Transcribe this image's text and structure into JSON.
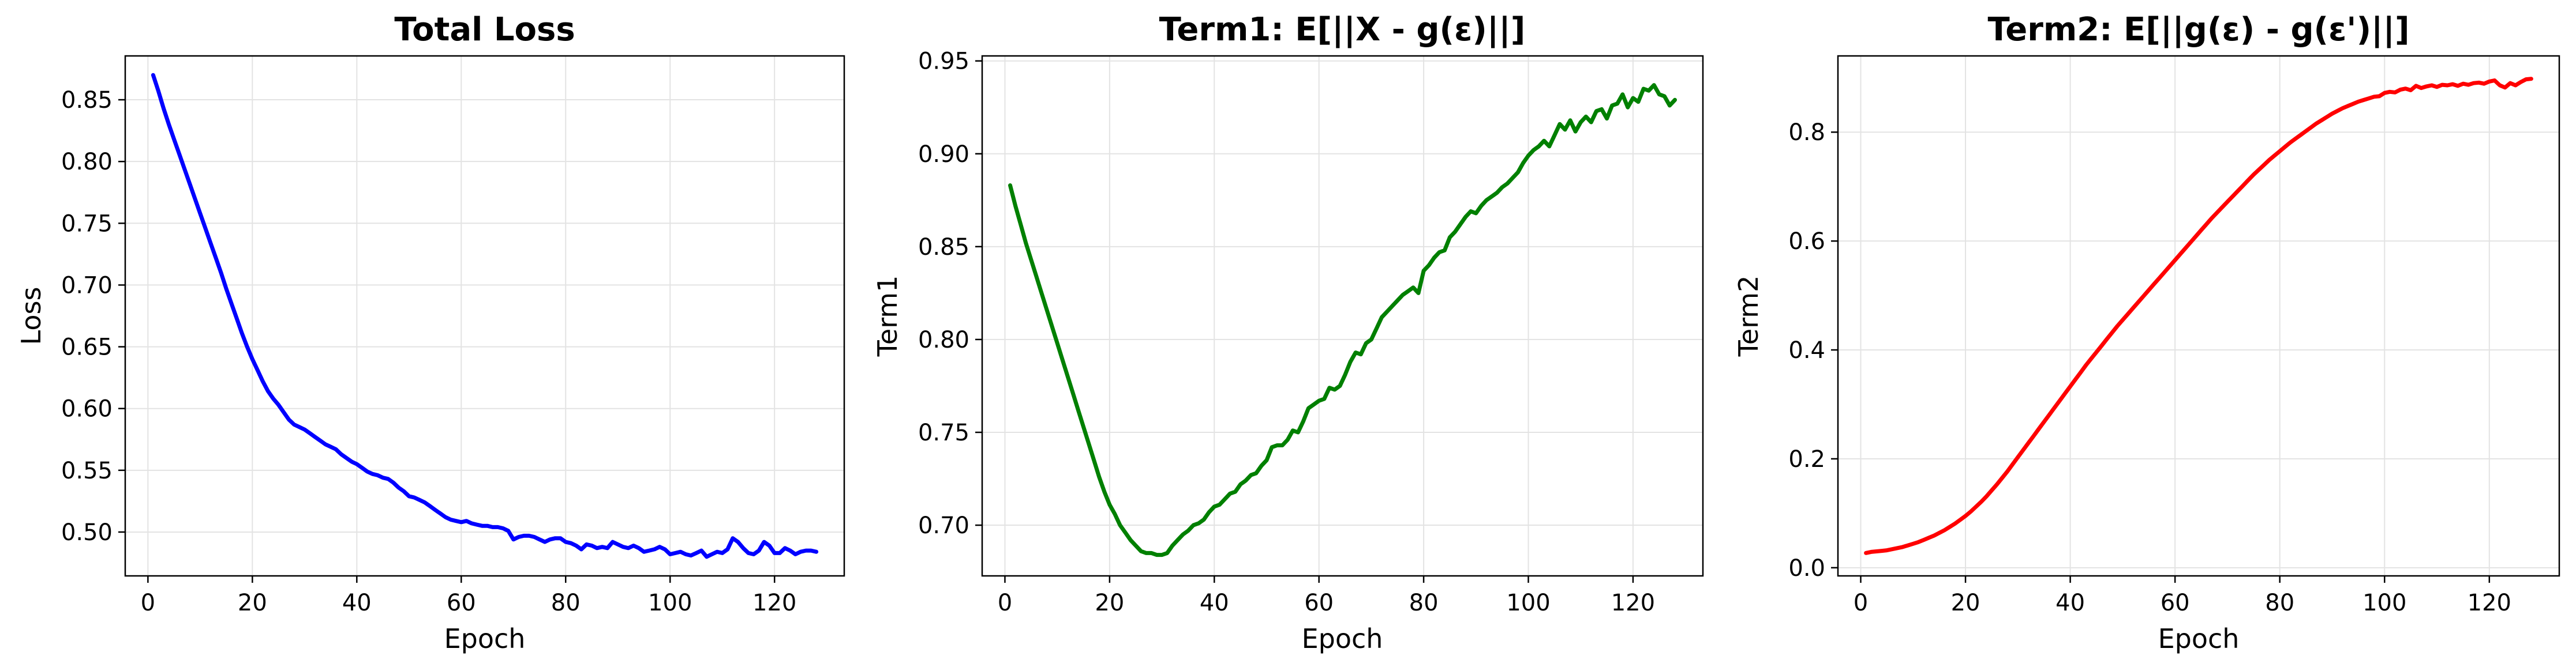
{
  "chart_data": [
    {
      "type": "line",
      "title": "Total Loss",
      "xlabel": "Epoch",
      "ylabel": "Loss",
      "xlim": [
        -4.35,
        133.35
      ],
      "ylim": [
        0.4645,
        0.8855
      ],
      "xticks": [
        0,
        20,
        40,
        60,
        80,
        100,
        120
      ],
      "xtick_labels": [
        "0",
        "20",
        "40",
        "60",
        "80",
        "100",
        "120"
      ],
      "yticks": [
        0.5,
        0.55,
        0.6,
        0.65,
        0.7,
        0.75,
        0.8,
        0.85
      ],
      "ytick_labels": [
        "0.50",
        "0.55",
        "0.60",
        "0.65",
        "0.70",
        "0.75",
        "0.80",
        "0.85"
      ],
      "grid": true,
      "color": "#0000ff",
      "series": [
        {
          "x": [
            1,
            2,
            3,
            4,
            5,
            6,
            7,
            8,
            9,
            10,
            11,
            12,
            13,
            14,
            15,
            16,
            17,
            18,
            19,
            20,
            21,
            22,
            23,
            24,
            25,
            26,
            27,
            28,
            29,
            30,
            31,
            32,
            33,
            34,
            35,
            36,
            37,
            38,
            39,
            40,
            41,
            42,
            43,
            44,
            45,
            46,
            47,
            48,
            49,
            50,
            51,
            52,
            53,
            54,
            55,
            56,
            57,
            58,
            59,
            60,
            61,
            62,
            63,
            64,
            65,
            66,
            67,
            68,
            69,
            70,
            71,
            72,
            73,
            74,
            75,
            76,
            77,
            78,
            79,
            80,
            81,
            82,
            83,
            84,
            85,
            86,
            87,
            88,
            89,
            90,
            91,
            92,
            93,
            94,
            95,
            96,
            97,
            98,
            99,
            100,
            101,
            102,
            103,
            104,
            105,
            106,
            107,
            108,
            109,
            110,
            111,
            112,
            113,
            114,
            115,
            116,
            117,
            118,
            119,
            120,
            121,
            122,
            123,
            124,
            125,
            126,
            127,
            128
          ],
          "y": [
            0.87,
            0.857,
            0.843,
            0.83,
            0.818,
            0.806,
            0.794,
            0.782,
            0.77,
            0.758,
            0.746,
            0.734,
            0.722,
            0.71,
            0.697,
            0.685,
            0.673,
            0.661,
            0.65,
            0.64,
            0.631,
            0.622,
            0.614,
            0.608,
            0.603,
            0.597,
            0.591,
            0.587,
            0.585,
            0.583,
            0.58,
            0.577,
            0.574,
            0.571,
            0.569,
            0.567,
            0.563,
            0.56,
            0.557,
            0.555,
            0.552,
            0.549,
            0.547,
            0.546,
            0.544,
            0.543,
            0.54,
            0.536,
            0.533,
            0.529,
            0.528,
            0.526,
            0.524,
            0.521,
            0.518,
            0.515,
            0.512,
            0.51,
            0.509,
            0.508,
            0.509,
            0.507,
            0.506,
            0.505,
            0.505,
            0.504,
            0.504,
            0.503,
            0.501,
            0.494,
            0.496,
            0.497,
            0.497,
            0.496,
            0.494,
            0.492,
            0.494,
            0.495,
            0.495,
            0.492,
            0.491,
            0.489,
            0.486,
            0.49,
            0.489,
            0.487,
            0.488,
            0.487,
            0.492,
            0.49,
            0.488,
            0.487,
            0.489,
            0.487,
            0.484,
            0.485,
            0.486,
            0.488,
            0.486,
            0.482,
            0.483,
            0.484,
            0.482,
            0.481,
            0.483,
            0.485,
            0.48,
            0.482,
            0.484,
            0.483,
            0.486,
            0.495,
            0.492,
            0.487,
            0.483,
            0.482,
            0.485,
            0.492,
            0.489,
            0.483,
            0.483,
            0.487,
            0.485,
            0.482,
            0.484,
            0.485,
            0.485,
            0.484
          ]
        }
      ]
    },
    {
      "type": "line",
      "title": "Term1: E[||X - g(ε)||]",
      "xlabel": "Epoch",
      "ylabel": "Term1",
      "xlim": [
        -4.35,
        133.35
      ],
      "ylim": [
        0.6727,
        0.9527
      ],
      "xticks": [
        0,
        20,
        40,
        60,
        80,
        100,
        120
      ],
      "xtick_labels": [
        "0",
        "20",
        "40",
        "60",
        "80",
        "100",
        "120"
      ],
      "yticks": [
        0.7,
        0.75,
        0.8,
        0.85,
        0.9,
        0.95
      ],
      "ytick_labels": [
        "0.70",
        "0.75",
        "0.80",
        "0.85",
        "0.90",
        "0.95"
      ],
      "grid": true,
      "color": "#008000",
      "series": [
        {
          "x": [
            1,
            2,
            3,
            4,
            5,
            6,
            7,
            8,
            9,
            10,
            11,
            12,
            13,
            14,
            15,
            16,
            17,
            18,
            19,
            20,
            21,
            22,
            23,
            24,
            25,
            26,
            27,
            28,
            29,
            30,
            31,
            32,
            33,
            34,
            35,
            36,
            37,
            38,
            39,
            40,
            41,
            42,
            43,
            44,
            45,
            46,
            47,
            48,
            49,
            50,
            51,
            52,
            53,
            54,
            55,
            56,
            57,
            58,
            59,
            60,
            61,
            62,
            63,
            64,
            65,
            66,
            67,
            68,
            69,
            70,
            71,
            72,
            73,
            74,
            75,
            76,
            77,
            78,
            79,
            80,
            81,
            82,
            83,
            84,
            85,
            86,
            87,
            88,
            89,
            90,
            91,
            92,
            93,
            94,
            95,
            96,
            97,
            98,
            99,
            100,
            101,
            102,
            103,
            104,
            105,
            106,
            107,
            108,
            109,
            110,
            111,
            112,
            113,
            114,
            115,
            116,
            117,
            118,
            119,
            120,
            121,
            122,
            123,
            124,
            125,
            126,
            127,
            128
          ],
          "y": [
            0.883,
            0.872,
            0.862,
            0.852,
            0.843,
            0.834,
            0.825,
            0.816,
            0.807,
            0.798,
            0.789,
            0.78,
            0.771,
            0.762,
            0.753,
            0.744,
            0.735,
            0.726,
            0.718,
            0.711,
            0.706,
            0.7,
            0.696,
            0.692,
            0.689,
            0.686,
            0.685,
            0.685,
            0.684,
            0.684,
            0.685,
            0.689,
            0.692,
            0.695,
            0.697,
            0.7,
            0.701,
            0.703,
            0.707,
            0.71,
            0.711,
            0.714,
            0.717,
            0.718,
            0.722,
            0.724,
            0.727,
            0.728,
            0.732,
            0.735,
            0.742,
            0.743,
            0.743,
            0.746,
            0.751,
            0.75,
            0.756,
            0.763,
            0.765,
            0.767,
            0.768,
            0.774,
            0.773,
            0.775,
            0.781,
            0.788,
            0.793,
            0.792,
            0.798,
            0.8,
            0.806,
            0.812,
            0.815,
            0.818,
            0.821,
            0.824,
            0.826,
            0.828,
            0.825,
            0.837,
            0.84,
            0.844,
            0.847,
            0.848,
            0.855,
            0.858,
            0.862,
            0.866,
            0.869,
            0.868,
            0.872,
            0.875,
            0.877,
            0.879,
            0.882,
            0.884,
            0.887,
            0.89,
            0.895,
            0.899,
            0.902,
            0.904,
            0.907,
            0.904,
            0.91,
            0.916,
            0.913,
            0.918,
            0.912,
            0.917,
            0.92,
            0.917,
            0.923,
            0.924,
            0.919,
            0.926,
            0.927,
            0.932,
            0.925,
            0.93,
            0.928,
            0.935,
            0.934,
            0.937,
            0.932,
            0.931,
            0.926,
            0.929
          ]
        }
      ]
    },
    {
      "type": "line",
      "title": "Term2: E[||g(ε) - g(ε')||]",
      "xlabel": "Epoch",
      "ylabel": "Term2",
      "xlim": [
        -4.35,
        133.35
      ],
      "ylim": [
        -0.015,
        0.94
      ],
      "xticks": [
        0,
        20,
        40,
        60,
        80,
        100,
        120
      ],
      "xtick_labels": [
        "0",
        "20",
        "40",
        "60",
        "80",
        "100",
        "120"
      ],
      "yticks": [
        0.0,
        0.2,
        0.4,
        0.6,
        0.8
      ],
      "ytick_labels": [
        "0.0",
        "0.2",
        "0.4",
        "0.6",
        "0.8"
      ],
      "grid": true,
      "color": "#ff0000",
      "series": [
        {
          "x": [
            1,
            2,
            3,
            4,
            5,
            6,
            7,
            8,
            9,
            10,
            11,
            12,
            13,
            14,
            15,
            16,
            17,
            18,
            19,
            20,
            21,
            22,
            23,
            24,
            25,
            26,
            27,
            28,
            29,
            30,
            31,
            32,
            33,
            34,
            35,
            36,
            37,
            38,
            39,
            40,
            41,
            42,
            43,
            44,
            45,
            46,
            47,
            48,
            49,
            50,
            51,
            52,
            53,
            54,
            55,
            56,
            57,
            58,
            59,
            60,
            61,
            62,
            63,
            64,
            65,
            66,
            67,
            68,
            69,
            70,
            71,
            72,
            73,
            74,
            75,
            76,
            77,
            78,
            79,
            80,
            81,
            82,
            83,
            84,
            85,
            86,
            87,
            88,
            89,
            90,
            91,
            92,
            93,
            94,
            95,
            96,
            97,
            98,
            99,
            100,
            101,
            102,
            103,
            104,
            105,
            106,
            107,
            108,
            109,
            110,
            111,
            112,
            113,
            114,
            115,
            116,
            117,
            118,
            119,
            120,
            121,
            122,
            123,
            124,
            125,
            126,
            127,
            128
          ],
          "y": [
            0.027,
            0.029,
            0.03,
            0.031,
            0.032,
            0.034,
            0.036,
            0.038,
            0.041,
            0.044,
            0.047,
            0.051,
            0.055,
            0.059,
            0.064,
            0.069,
            0.075,
            0.081,
            0.088,
            0.095,
            0.103,
            0.112,
            0.121,
            0.131,
            0.142,
            0.153,
            0.165,
            0.177,
            0.19,
            0.203,
            0.216,
            0.229,
            0.242,
            0.255,
            0.268,
            0.281,
            0.294,
            0.307,
            0.32,
            0.333,
            0.346,
            0.359,
            0.372,
            0.384,
            0.396,
            0.408,
            0.42,
            0.432,
            0.444,
            0.455,
            0.466,
            0.477,
            0.488,
            0.499,
            0.51,
            0.521,
            0.532,
            0.543,
            0.554,
            0.565,
            0.576,
            0.587,
            0.598,
            0.609,
            0.62,
            0.631,
            0.642,
            0.652,
            0.662,
            0.672,
            0.682,
            0.692,
            0.702,
            0.712,
            0.722,
            0.731,
            0.74,
            0.749,
            0.757,
            0.765,
            0.773,
            0.781,
            0.788,
            0.795,
            0.802,
            0.809,
            0.816,
            0.822,
            0.828,
            0.834,
            0.839,
            0.844,
            0.848,
            0.852,
            0.856,
            0.859,
            0.862,
            0.865,
            0.866,
            0.872,
            0.874,
            0.873,
            0.878,
            0.88,
            0.877,
            0.885,
            0.881,
            0.884,
            0.886,
            0.883,
            0.887,
            0.886,
            0.888,
            0.885,
            0.889,
            0.887,
            0.89,
            0.891,
            0.889,
            0.893,
            0.895,
            0.886,
            0.882,
            0.89,
            0.886,
            0.892,
            0.897,
            0.898
          ]
        }
      ]
    }
  ]
}
